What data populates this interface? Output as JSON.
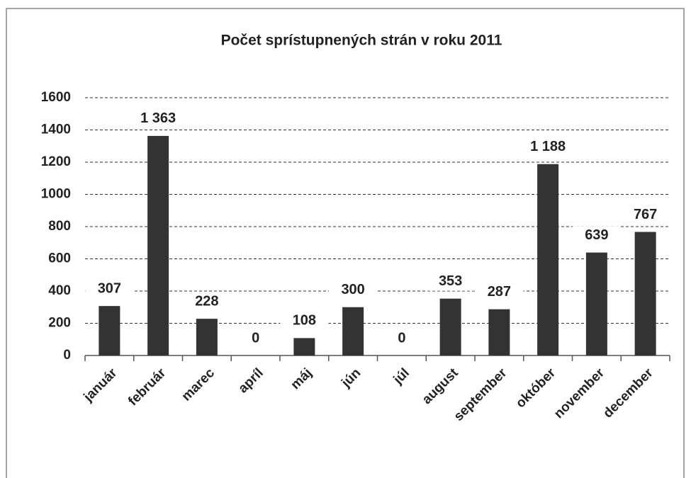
{
  "chart_data": {
    "type": "bar",
    "title": "Počet sprístupnených strán v roku 2011",
    "categories": [
      "január",
      "február",
      "marec",
      "apríl",
      "máj",
      "jún",
      "júl",
      "august",
      "september",
      "október",
      "november",
      "december"
    ],
    "values": [
      307,
      1363,
      228,
      0,
      108,
      300,
      0,
      353,
      287,
      1188,
      639,
      767
    ],
    "value_labels": [
      "307",
      "1 363",
      "228",
      "0",
      "108",
      "300",
      "0",
      "353",
      "287",
      "1 188",
      "639",
      "767"
    ],
    "color": "#333333",
    "ylim": [
      0,
      1600
    ],
    "yticks": [
      0,
      200,
      400,
      600,
      800,
      1000,
      1200,
      1400,
      1600
    ],
    "grid": true
  }
}
